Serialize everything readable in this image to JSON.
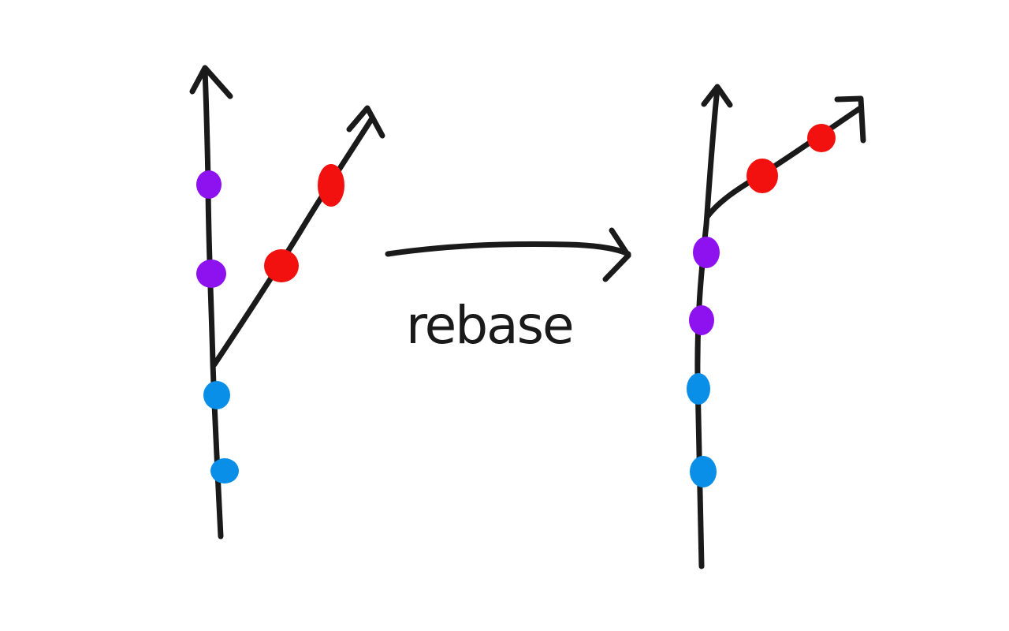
{
  "label": "rebase",
  "colors": {
    "ink": "#1a1a1a",
    "base_commit": "#0a8fe8",
    "main_commit": "#8e12f0",
    "feature_commit": "#f2110f"
  },
  "before": {
    "base_commits": 2,
    "main_commits": 2,
    "feature_commits": 2
  },
  "after": {
    "base_commits": 2,
    "main_commits": 2,
    "feature_commits": 2
  }
}
